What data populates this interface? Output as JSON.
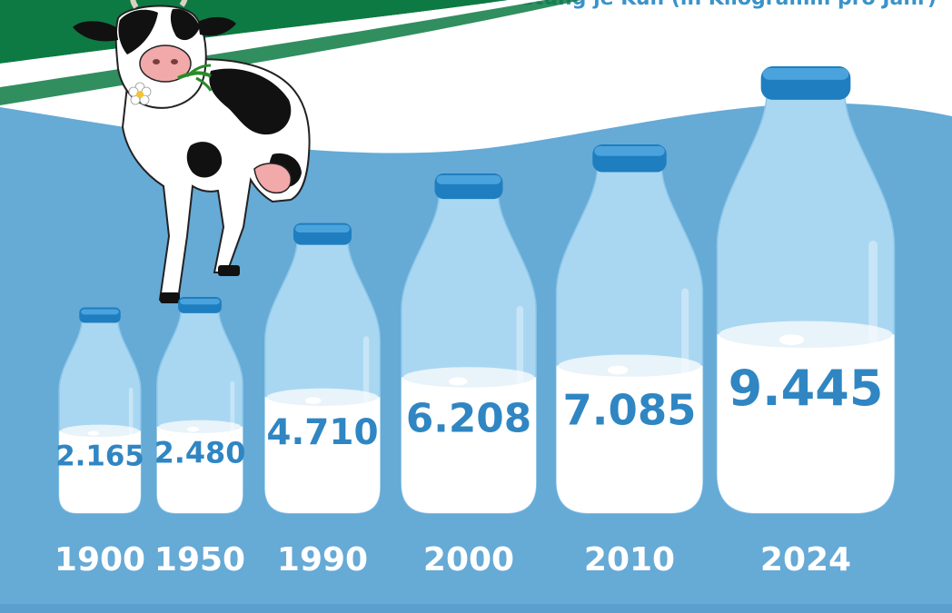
{
  "subtitle": "Milchleistung je Kuh (in Kilogramm pro Jahr)",
  "colors": {
    "background": "#ffffff",
    "wave": "#66aad6",
    "wave_dark": "#5a9fcd",
    "brand_green": "#0d7a43",
    "bottle_glass": "#a9d7f1",
    "bottle_cap": "#1f7ebf",
    "milk": "#ffffff",
    "value_text": "#2f86c2",
    "year_text": "#ffffff"
  },
  "chart_data": {
    "type": "bar",
    "style": "pictogram-milk-bottles",
    "title": "",
    "subtitle": "Milchleistung je Kuh (in Kilogramm pro Jahr)",
    "xlabel": "",
    "ylabel": "",
    "unit": "Kilogramm pro Jahr",
    "categories": [
      "1900",
      "1950",
      "1990",
      "2000",
      "2010",
      "2024"
    ],
    "values": [
      2165,
      2480,
      4710,
      6208,
      7085,
      9445
    ],
    "value_labels": [
      "2.165",
      "2.480",
      "4.710",
      "6.208",
      "7.085",
      "9.445"
    ],
    "grid": false,
    "legend": "none"
  },
  "illustration": {
    "cow": "cow-icon",
    "flower": "daisy-icon"
  }
}
